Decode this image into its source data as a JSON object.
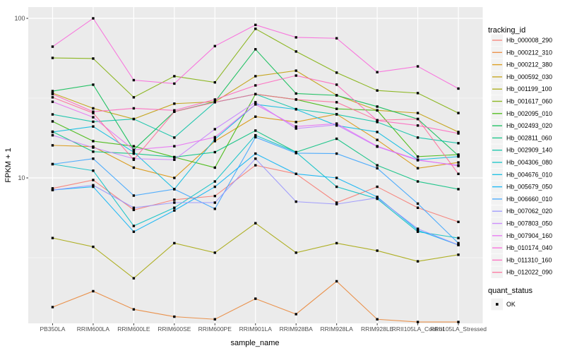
{
  "chart_data": {
    "type": "line",
    "title": "",
    "xlabel": "sample_name",
    "ylabel": "FPKM + 1",
    "y_scale": "log10",
    "y_ticks": [
      100,
      10
    ],
    "y_tick_labels": [
      "100",
      "10"
    ],
    "y_minor_gridlines": [
      31.62,
      3.162
    ],
    "y_range_approx": [
      1.25,
      117
    ],
    "grid": "on",
    "point_marker": "filled-black-square",
    "legend_title": "tracking_id",
    "legend_position": "right",
    "categories": [
      "PB350LA",
      "RRIM600LA",
      "RRIM600LE",
      "RRIM600SE",
      "RRIM600PE",
      "RRIM901LA",
      "RRIM928BA",
      "RRIM928LA",
      "RRIM928LE",
      "RRII105LA_Control",
      "RRII105LA_Stressed"
    ],
    "series": [
      {
        "name": "Hb_000008_290",
        "color": "#F8766D",
        "values": [
          8.6,
          9.7,
          6.3,
          7.3,
          7.7,
          12,
          10.6,
          7,
          8.8,
          6.5,
          5.3
        ]
      },
      {
        "name": "Hb_000212_310",
        "color": "#EA8331",
        "values": [
          1.55,
          1.95,
          1.5,
          1.35,
          1.3,
          1.75,
          1.4,
          2.25,
          1.3,
          1.25,
          1.25
        ]
      },
      {
        "name": "Hb_000212_380",
        "color": "#D89000",
        "values": [
          16,
          15.7,
          11.6,
          10,
          17,
          24.2,
          22.4,
          25.1,
          17.3,
          11.5,
          12.5
        ]
      },
      {
        "name": "Hb_000592_030",
        "color": "#C09B00",
        "values": [
          34,
          27.3,
          23.4,
          29.2,
          30,
          43.4,
          47,
          33,
          26.5,
          25.5,
          19.4
        ]
      },
      {
        "name": "Hb_001199_100",
        "color": "#A3A500",
        "values": [
          4.2,
          3.7,
          2.35,
          3.9,
          3.4,
          5.2,
          3.4,
          3.9,
          3.5,
          3,
          3.3
        ]
      },
      {
        "name": "Hb_001617_060",
        "color": "#7CAE00",
        "values": [
          56.5,
          56,
          32,
          43.4,
          39.7,
          86,
          62,
          45.7,
          35.3,
          34,
          25.5
        ]
      },
      {
        "name": "Hb_002095_010",
        "color": "#39B600",
        "values": [
          22.6,
          17,
          15.8,
          13.5,
          11.6,
          33.5,
          31,
          27.1,
          26.5,
          13.6,
          14
        ]
      },
      {
        "name": "Hb_002493_020",
        "color": "#00BB4E",
        "values": [
          35,
          38.4,
          15,
          26,
          30,
          64,
          33.8,
          32.9,
          28,
          23.4,
          13.8
        ]
      },
      {
        "name": "Hb_002811_060",
        "color": "#00BF7D",
        "values": [
          19.5,
          14.6,
          14.2,
          13.5,
          14.5,
          19.8,
          14.5,
          17.6,
          12,
          9.5,
          8.5
        ]
      },
      {
        "name": "Hb_002909_140",
        "color": "#00C1A3",
        "values": [
          25,
          22.5,
          23.4,
          17.9,
          29.8,
          33.5,
          27,
          25,
          22.4,
          17.9,
          16.5
        ]
      },
      {
        "name": "Hb_004306_080",
        "color": "#00BFC4",
        "values": [
          12.2,
          11.1,
          5,
          6.5,
          9.5,
          18.5,
          14.5,
          8.8,
          7.4,
          4.6,
          4.2
        ]
      },
      {
        "name": "Hb_004676_010",
        "color": "#00BAE0",
        "values": [
          19.4,
          21,
          14.5,
          8.5,
          17.5,
          28.9,
          26.9,
          21.3,
          19.4,
          13,
          13.6
        ]
      },
      {
        "name": "Hb_005679_050",
        "color": "#00B0F6",
        "values": [
          8.4,
          8.8,
          4.6,
          6.25,
          8.8,
          14.2,
          10.6,
          10,
          7.6,
          4.7,
          3.8
        ]
      },
      {
        "name": "Hb_006660_010",
        "color": "#35A2FF",
        "values": [
          12.2,
          13.2,
          7.75,
          8.5,
          6.4,
          18,
          14.3,
          14.2,
          11.5,
          6.9,
          3.9
        ]
      },
      {
        "name": "Hb_007062_020",
        "color": "#9590FF",
        "values": [
          8.4,
          9,
          6.5,
          7,
          7,
          13.2,
          7.1,
          6.85,
          7.5,
          4.8,
          3.8
        ]
      },
      {
        "name": "Hb_007803_050",
        "color": "#C77CFF",
        "values": [
          18.5,
          15.5,
          13.2,
          13,
          20.2,
          29.8,
          20.4,
          21.5,
          15.7,
          12.9,
          12
        ]
      },
      {
        "name": "Hb_007904_160",
        "color": "#E76BF3",
        "values": [
          30,
          24,
          15,
          15.8,
          18,
          28.9,
          21,
          21.9,
          15.8,
          13,
          11.9
        ]
      },
      {
        "name": "Hb_010174_040",
        "color": "#FA62DB",
        "values": [
          66.5,
          100,
          41,
          39,
          67,
          91,
          76,
          75,
          46,
          50,
          36.3
        ]
      },
      {
        "name": "Hb_011310_160",
        "color": "#FF62BC",
        "values": [
          33.5,
          26,
          27.3,
          26.5,
          31,
          38,
          43.8,
          38.4,
          22.9,
          21.3,
          19
        ]
      },
      {
        "name": "Hb_012022_090",
        "color": "#FF6A98",
        "values": [
          32,
          25.5,
          13,
          26,
          29.8,
          33.5,
          31,
          29.8,
          23,
          23.4,
          10.6
        ]
      }
    ],
    "quant_legend": {
      "title": "quant_status",
      "items": [
        {
          "label": "OK",
          "marker": "black-square"
        }
      ]
    }
  },
  "theme": {
    "panel_bg": "#EBEBEB",
    "grid_major_color": "#FFFFFF",
    "grid_minor_color": "#FFFFFF",
    "axis_text_color": "#4D4D4D",
    "tick_mark_color": "#333333",
    "legend_key_bg": "#F2F2F2",
    "point_color": "#000000"
  }
}
